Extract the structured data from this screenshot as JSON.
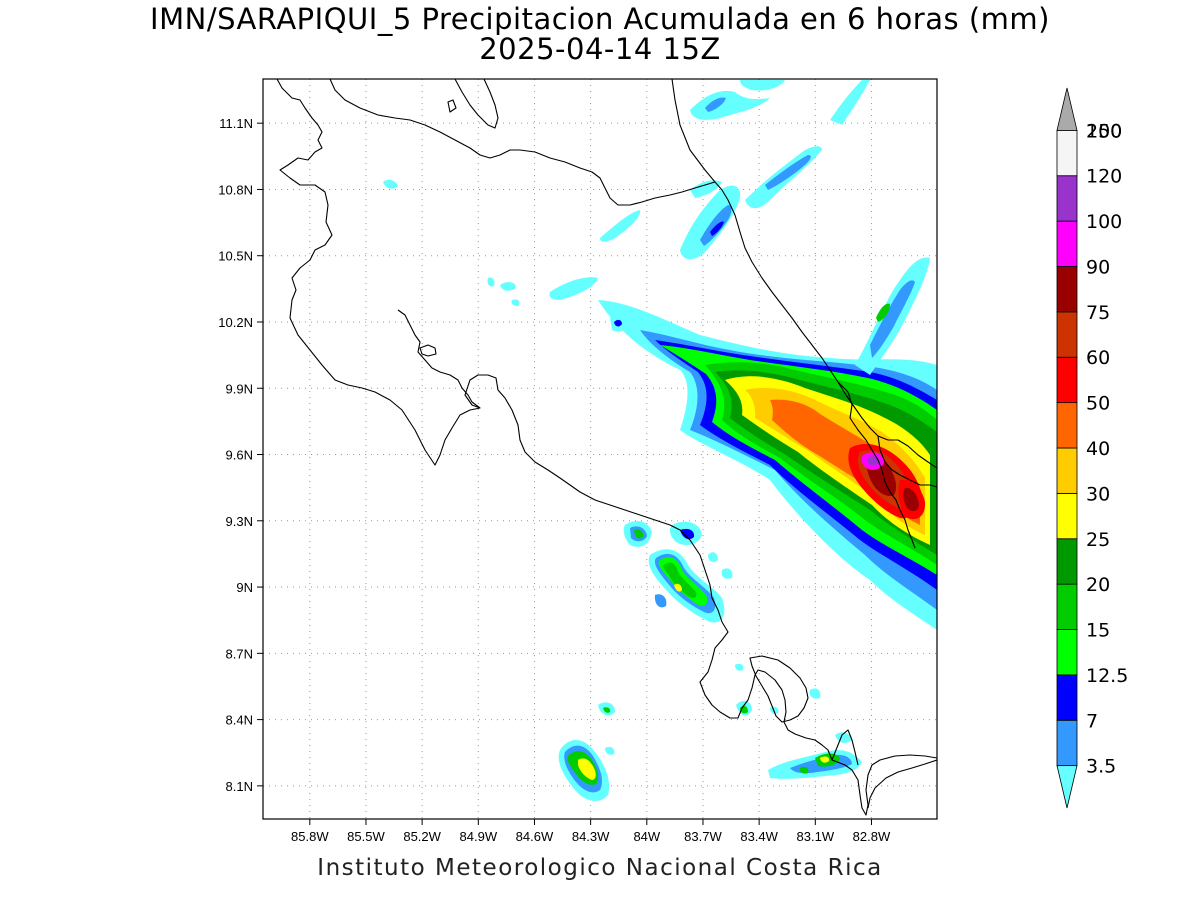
{
  "title": {
    "line1": "IMN/SARAPIQUI_5 Precipitacion Acumulada en 6 horas (mm)",
    "line2": "2025-04-14 15Z"
  },
  "footer": "Instituto Meteorologico Nacional Costa Rica",
  "map": {
    "lon_range": [
      -86.05,
      -82.45
    ],
    "lat_range": [
      7.95,
      11.3
    ],
    "x_ticks": [
      "85.8W",
      "85.5W",
      "85.2W",
      "84.9W",
      "84.6W",
      "84.3W",
      "84W",
      "83.7W",
      "83.4W",
      "83.1W",
      "82.8W"
    ],
    "y_ticks": [
      "11.1N",
      "10.8N",
      "10.5N",
      "10.2N",
      "9.9N",
      "9.6N",
      "9.3N",
      "9N",
      "8.7N",
      "8.4N",
      "8.1N"
    ],
    "grid": true
  },
  "legend": {
    "unit": "mm",
    "levels": [
      {
        "label": "3.5",
        "color": "#66ffff"
      },
      {
        "label": "7",
        "color": "#3399ff"
      },
      {
        "label": "12.5",
        "color": "#0000ff"
      },
      {
        "label": "15",
        "color": "#00ff00"
      },
      {
        "label": "20",
        "color": "#00cc00"
      },
      {
        "label": "25",
        "color": "#009900"
      },
      {
        "label": "30",
        "color": "#ffff00"
      },
      {
        "label": "40",
        "color": "#ffcc00"
      },
      {
        "label": "50",
        "color": "#ff6600"
      },
      {
        "label": "60",
        "color": "#ff0000"
      },
      {
        "label": "75",
        "color": "#cc3300"
      },
      {
        "label": "90",
        "color": "#990000"
      },
      {
        "label": "100",
        "color": "#ff00ff"
      },
      {
        "label": "120",
        "color": "#9933cc"
      },
      {
        "label": "150",
        "color": "#f5f5f5"
      },
      {
        "label": "200",
        "color": "#aaaaaa"
      }
    ]
  }
}
